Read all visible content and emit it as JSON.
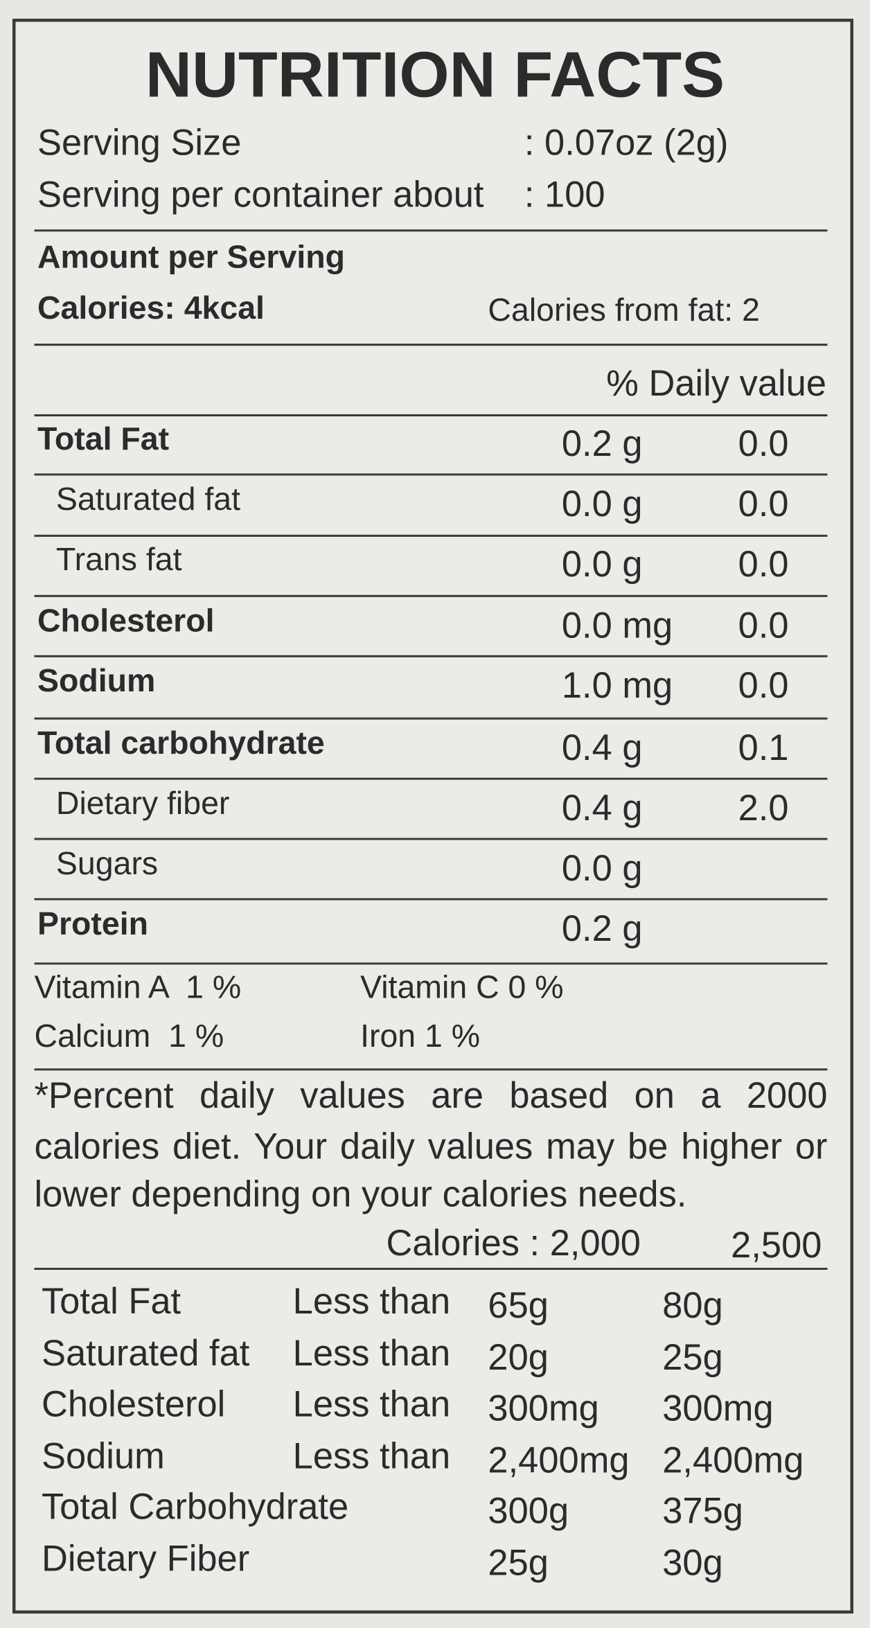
{
  "title": "NUTRITION FACTS",
  "serving": {
    "size_label": "Serving Size",
    "size_value": ": 0.07oz (2g)",
    "per_container_label": "Serving per container about",
    "per_container_value": ": 100"
  },
  "amount_header": "Amount per Serving",
  "calories": "Calories: 4kcal",
  "calories_from_fat": "Calories from fat: 2",
  "daily_value_header": "% Daily value",
  "nutrients": [
    {
      "name": "Total Fat",
      "amount": "0.2 g",
      "dv": "0.0",
      "bold": true,
      "indent": false
    },
    {
      "name": "Saturated fat",
      "amount": "0.0 g",
      "dv": "0.0",
      "bold": false,
      "indent": true
    },
    {
      "name": "Trans fat",
      "amount": "0.0 g",
      "dv": "0.0",
      "bold": false,
      "indent": true
    },
    {
      "name": "Cholesterol",
      "amount": "0.0 mg",
      "dv": "0.0",
      "bold": true,
      "indent": false
    },
    {
      "name": "Sodium",
      "amount": "1.0 mg",
      "dv": "0.0",
      "bold": true,
      "indent": false
    },
    {
      "name": "Total carbohydrate",
      "amount": "0.4 g",
      "dv": "0.1",
      "bold": true,
      "indent": false
    },
    {
      "name": "Dietary fiber",
      "amount": "0.4 g",
      "dv": "2.0",
      "bold": false,
      "indent": true
    },
    {
      "name": "Sugars",
      "amount": "0.0 g",
      "bold": false,
      "indent": true
    },
    {
      "name": "Protein",
      "amount": "0.2 g",
      "bold": true,
      "indent": false
    }
  ],
  "vitamins": [
    [
      "Vitamin A  1 %",
      "Vitamin C 0 %"
    ],
    [
      "Calcium  1 %",
      "Iron 1 %"
    ]
  ],
  "footnote": [
    "*Percent daily values are based on a 2000",
    "calories diet. Your daily values may be higher or",
    "lower depending on your calories needs."
  ],
  "reference": {
    "header": [
      "Calories : 2,000",
      "2,500"
    ],
    "rows": [
      [
        "Total Fat",
        "Less than",
        "65g",
        "80g"
      ],
      [
        "Saturated fat",
        "Less than",
        "20g",
        "25g"
      ],
      [
        "Cholesterol",
        "Less than",
        "300mg",
        "300mg"
      ],
      [
        "Sodium",
        "Less than",
        "2,400mg",
        "2,400mg"
      ],
      [
        "Total Carbohydrate",
        "",
        "300g",
        "375g"
      ],
      [
        "Dietary Fiber",
        "",
        "25g",
        "30g"
      ]
    ]
  }
}
